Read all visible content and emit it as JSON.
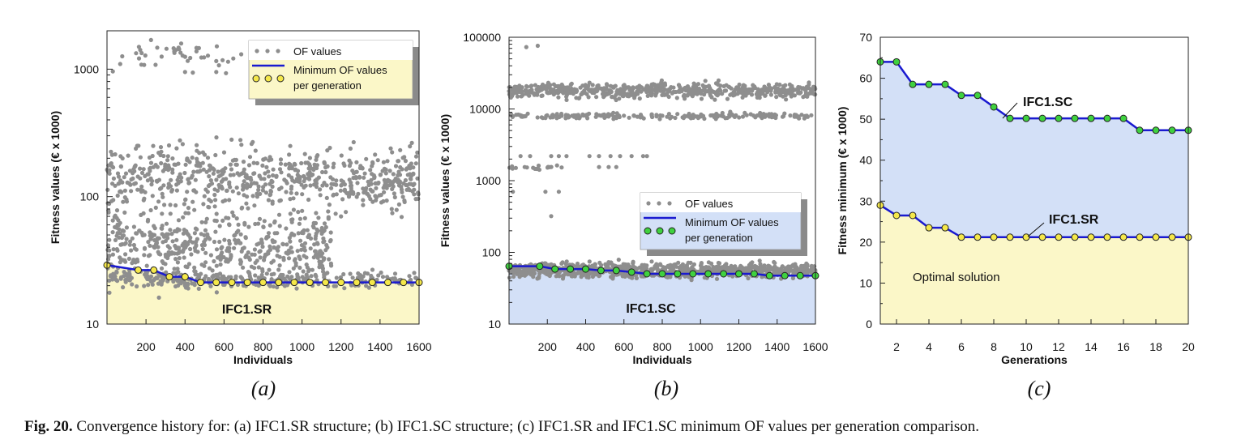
{
  "caption": {
    "label": "Fig. 20.",
    "text": "Convergence history for: (a) IFC1.SR structure; (b) IFC1.SC structure; (c) IFC1.SR and IFC1.SC minimum OF values per generation comparison."
  },
  "colors": {
    "scatter": "#8e8e8e",
    "line": "#1a1ad0",
    "sr_fill": "#fbf7c8",
    "sc_fill": "#d3e0f7",
    "sr_marker": "#f5e84a",
    "sc_marker": "#3fd13f"
  },
  "chart_data": [
    {
      "id": "a",
      "panel_label": "(a)",
      "type": "scatter",
      "ylabel": "Fitness values (€ x 1000)",
      "xlabel": "Individuals",
      "yscale": "log",
      "ylim": [
        10,
        2000
      ],
      "xlim": [
        0,
        1600
      ],
      "yticks": [
        10,
        100,
        1000
      ],
      "xticks": [
        200,
        400,
        600,
        800,
        1000,
        1200,
        1400,
        1600
      ],
      "legend": [
        "OF values",
        "Minimum OF values per generation"
      ],
      "legend_position": "top-right",
      "area_label": "IFC1.SR",
      "scatter_bands": [
        {
          "x": [
            0,
            700
          ],
          "y_center": 1300,
          "spread": 0.05,
          "count": 40
        },
        {
          "x": [
            0,
            1600
          ],
          "y_center": 140,
          "spread": 0.12,
          "count": 650
        },
        {
          "x": [
            0,
            1150
          ],
          "y_center": 40,
          "spread": 0.15,
          "count": 550
        },
        {
          "x": [
            0,
            1600
          ],
          "y_center": 22.5,
          "spread": 0.03,
          "count": 250
        }
      ],
      "scatter_extra": [
        [
          30,
          960
        ],
        [
          560,
          950
        ],
        [
          610,
          930
        ],
        [
          440,
          940
        ],
        [
          400,
          950
        ],
        [
          30,
          65
        ],
        [
          60,
          60
        ]
      ],
      "minimum_series": {
        "x": [
          0,
          160,
          240,
          320,
          400,
          480,
          560,
          640,
          720,
          800,
          880,
          960,
          1040,
          1120,
          1200,
          1280,
          1360,
          1440,
          1520,
          1600
        ],
        "y": [
          29,
          26.5,
          26.5,
          23.5,
          23.5,
          21.2,
          21.2,
          21.2,
          21.2,
          21.2,
          21.2,
          21.2,
          21.2,
          21.2,
          21.2,
          21.2,
          21.2,
          21.2,
          21.2,
          21.2
        ]
      }
    },
    {
      "id": "b",
      "panel_label": "(b)",
      "type": "scatter",
      "ylabel": "Fitness values (€ x 1000)",
      "xlabel": "Individuals",
      "yscale": "log",
      "ylim": [
        10,
        100000
      ],
      "xlim": [
        0,
        1600
      ],
      "yticks": [
        10,
        100,
        1000,
        10000,
        100000
      ],
      "xticks": [
        200,
        400,
        600,
        800,
        1000,
        1200,
        1400,
        1600
      ],
      "legend": [
        "OF values",
        "Minimum OF values per generation"
      ],
      "legend_position": "center-right",
      "area_label": "IFC1.SC",
      "scatter_bands": [
        {
          "x": [
            0,
            1600
          ],
          "y_center": 18000,
          "spread": 0.05,
          "count": 600
        },
        {
          "x": [
            0,
            1600
          ],
          "y_center": 8000,
          "spread": 0.02,
          "count": 200
        },
        {
          "x": [
            0,
            300
          ],
          "y_center": 1550,
          "spread": 0.02,
          "count": 18
        },
        {
          "x": [
            0,
            1600
          ],
          "y_center": 56,
          "spread": 0.05,
          "count": 900
        }
      ],
      "scatter_extra": [
        [
          60,
          2200
        ],
        [
          110,
          2200
        ],
        [
          220,
          2200
        ],
        [
          260,
          2200
        ],
        [
          300,
          2200
        ],
        [
          420,
          2200
        ],
        [
          470,
          2200
        ],
        [
          530,
          2200
        ],
        [
          580,
          2200
        ],
        [
          640,
          2200
        ],
        [
          700,
          2200
        ],
        [
          720,
          2200
        ],
        [
          20,
          700
        ],
        [
          190,
          700
        ],
        [
          260,
          700
        ],
        [
          220,
          320
        ],
        [
          90,
          73000
        ],
        [
          150,
          76000
        ],
        [
          470,
          1550
        ],
        [
          520,
          1550
        ],
        [
          560,
          1550
        ]
      ],
      "minimum_series": {
        "x": [
          0,
          160,
          240,
          320,
          400,
          480,
          560,
          640,
          720,
          800,
          880,
          960,
          1040,
          1120,
          1200,
          1280,
          1360,
          1440,
          1520,
          1600
        ],
        "y": [
          64,
          64,
          58.5,
          58.5,
          58.5,
          55.8,
          55.8,
          53,
          50.2,
          50.2,
          50.2,
          50.2,
          50.2,
          50.2,
          50.2,
          50.2,
          47.3,
          47.3,
          47.3,
          47.3
        ]
      }
    },
    {
      "id": "c",
      "panel_label": "(c)",
      "type": "line",
      "ylabel": "Fitness minimum (€ x 1000)",
      "xlabel": "Generations",
      "ylim": [
        0,
        70
      ],
      "xlim": [
        1,
        20
      ],
      "yticks": [
        0,
        10,
        20,
        30,
        40,
        50,
        60,
        70
      ],
      "xticks": [
        2,
        4,
        6,
        8,
        10,
        12,
        14,
        16,
        18,
        20
      ],
      "area_label": "Optimal solution",
      "series": [
        {
          "name": "IFC1.SC",
          "x": [
            1,
            2,
            3,
            4,
            5,
            6,
            7,
            8,
            9,
            10,
            11,
            12,
            13,
            14,
            15,
            16,
            17,
            18,
            19,
            20
          ],
          "y": [
            64,
            64,
            58.5,
            58.5,
            58.5,
            55.8,
            55.8,
            53,
            50.2,
            50.2,
            50.2,
            50.2,
            50.2,
            50.2,
            50.2,
            50.2,
            47.3,
            47.3,
            47.3,
            47.3
          ]
        },
        {
          "name": "IFC1.SR",
          "x": [
            1,
            2,
            3,
            4,
            5,
            6,
            7,
            8,
            9,
            10,
            11,
            12,
            13,
            14,
            15,
            16,
            17,
            18,
            19,
            20
          ],
          "y": [
            29,
            26.5,
            26.5,
            23.5,
            23.5,
            21.2,
            21.2,
            21.2,
            21.2,
            21.2,
            21.2,
            21.2,
            21.2,
            21.2,
            21.2,
            21.2,
            21.2,
            21.2,
            21.2,
            21.2
          ]
        }
      ]
    }
  ]
}
